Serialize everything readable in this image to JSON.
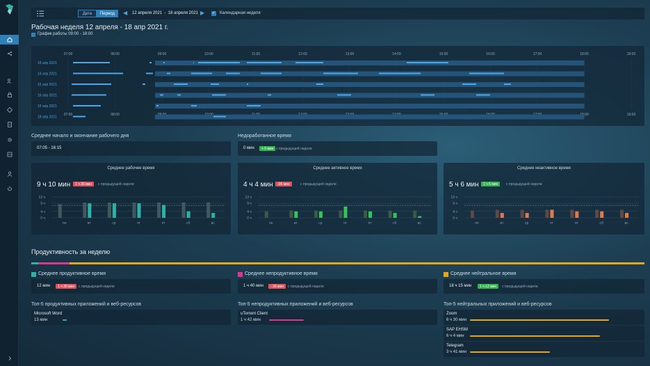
{
  "topbar": {
    "date_label": "Дата",
    "period_label": "Период",
    "date_range": "12 апреля 2021  -  18 апреля 2021",
    "calendar_week_label": "Календарная неделя"
  },
  "header": {
    "title": "Рабочая неделя 12 апреля - 18 апр 2021 г.",
    "schedule": "График работы 09:00 - 18:00"
  },
  "timeline": {
    "hours": [
      "07:00",
      "08:00",
      "09:00",
      "10:00",
      "11:00",
      "12:00",
      "13:00",
      "14:00",
      "15:00",
      "16:00",
      "17:00",
      "18:00",
      "19:00"
    ],
    "days": [
      "18 апр 2021",
      "14 апр 2021",
      "15 апр 2021",
      "16 апр 2021",
      "16 апр 2021",
      "18 апр 2021"
    ]
  },
  "summary": {
    "start_end_title": "Среднее начало и окончание рабочего дня",
    "start_end_value": "07:05 - 16:15",
    "underworked_title": "Недоработанное время",
    "underworked_value": "0 мин",
    "underworked_badge": "+ 0 мин",
    "prev_week": "с предыдущей недели"
  },
  "cards": [
    {
      "title": "Среднее рабочее время",
      "value": "9 ч 10 мин",
      "badge": "1 ч 36 мин",
      "badge_color": "red",
      "prev": "с предыдущей недели",
      "color": "#2bb3a8",
      "ghost": "#3f5a5e"
    },
    {
      "title": "Среднее активное время",
      "value": "4 ч 4 мин",
      "badge": "-36 мин",
      "badge_color": "red",
      "prev": "с предыдущей недели",
      "color": "#33c45a",
      "ghost": "#3b5a47"
    },
    {
      "title": "Среднее неактивное время",
      "value": "5 ч 6 мин",
      "badge": "1 ч 6 мин",
      "badge_color": "green",
      "prev": "с предыдущей недели",
      "color": "#e27a50",
      "ghost": "#5e4a42"
    }
  ],
  "card_axis": {
    "y_ticks": [
      "13 ч",
      "9 ч",
      "4 ч",
      "0 ч"
    ],
    "days": [
      "пн",
      "вт",
      "ср",
      "чт",
      "пт",
      "сб",
      "вс"
    ]
  },
  "chart_data": [
    {
      "type": "bar",
      "title": "Среднее рабочее время",
      "categories": [
        "пн",
        "вт",
        "ср",
        "чт",
        "пт",
        "сб",
        "вс"
      ],
      "ylim": [
        0,
        13
      ],
      "series": [
        {
          "values": [
            0,
            9,
            9,
            9,
            8,
            4,
            3
          ]
        }
      ]
    },
    {
      "type": "bar",
      "title": "Среднее активное время",
      "categories": [
        "пн",
        "вт",
        "ср",
        "чт",
        "пт",
        "сб",
        "вс"
      ],
      "ylim": [
        0,
        13
      ],
      "series": [
        {
          "values": [
            0,
            4,
            4,
            7,
            4,
            3,
            1
          ]
        }
      ]
    },
    {
      "type": "bar",
      "title": "Среднее неактивное время",
      "categories": [
        "пн",
        "вт",
        "ср",
        "чт",
        "пт",
        "сб",
        "вс"
      ],
      "ylim": [
        0,
        13
      ],
      "series": [
        {
          "values": [
            0,
            3,
            3,
            5,
            4,
            4,
            3
          ]
        }
      ]
    }
  ],
  "productivity": {
    "title": "Продуктивность за неделю",
    "productive": {
      "title": "Среднее продуктивное время",
      "value": "12 мин",
      "badge": "1 ч 30 мин",
      "color": "#2bb3a8"
    },
    "unproductive": {
      "title": "Среднее непродуктивное время",
      "value": "1 ч 40 мин",
      "badge": "- 30 мин",
      "color": "#e0358a"
    },
    "neutral": {
      "title": "Среднее нейтральное время",
      "value": "18 ч 15 мин",
      "badge": "1 ч 12 мин",
      "color": "#e8a816"
    },
    "prev_week": "с предыдущей недели"
  },
  "top5": {
    "productive_title": "Топ-5 продуктивных приложений и веб-ресурсов",
    "unproductive_title": "Топ-5 непродуктивных приложений и веб-ресурсов",
    "neutral_title": "Топ-5 нейтральных приложений и веб-ресурсов",
    "productive": [
      {
        "name": "Microsoft Word",
        "time": "13 мин"
      }
    ],
    "unproductive": [
      {
        "name": "uTorrent Client",
        "time": "1 ч 42 мин"
      }
    ],
    "neutral": [
      {
        "name": "Zoom",
        "time": "6 ч 30 мин"
      },
      {
        "name": "SAP EHSM",
        "time": "6 ч 4 мин"
      },
      {
        "name": "Telegram",
        "time": "3 ч 41 мин"
      }
    ]
  }
}
